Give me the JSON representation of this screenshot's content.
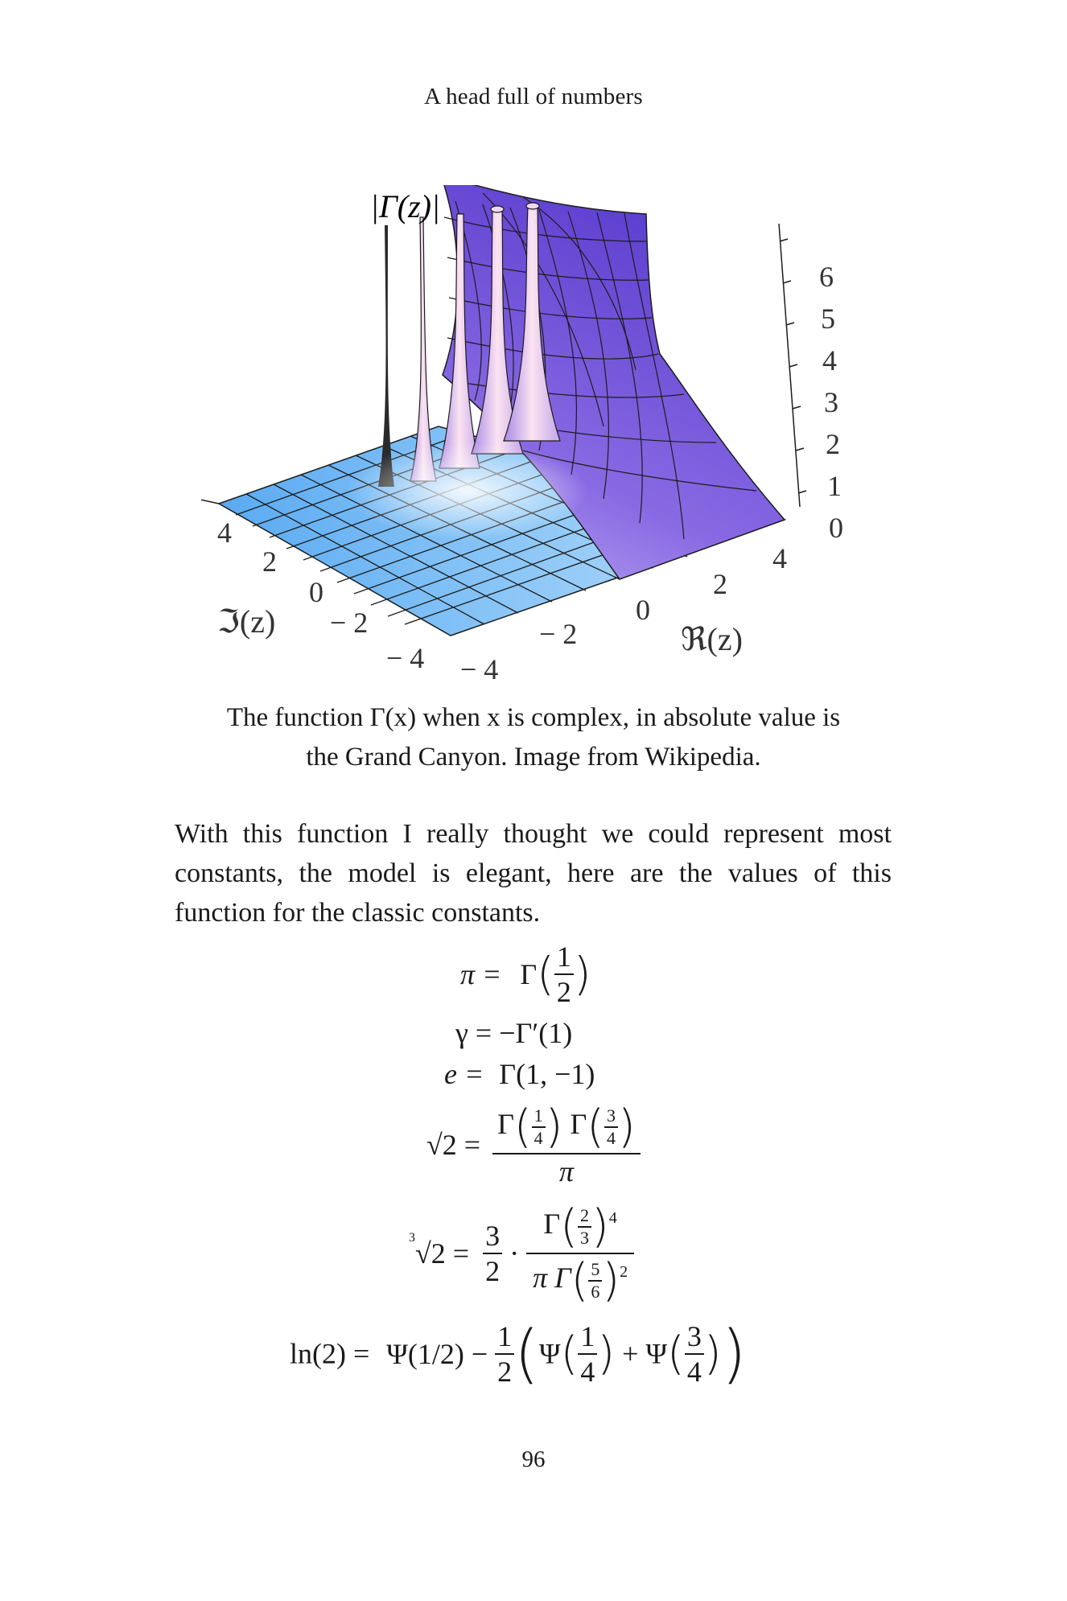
{
  "header": {
    "running_title": "A head full of numbers"
  },
  "figure": {
    "z_axis_label": "|Γ(z)|",
    "z_ticks": [
      "0",
      "1",
      "2",
      "3",
      "4",
      "5",
      "6"
    ],
    "imag_axis_label": "ℑ(z)",
    "imag_ticks": [
      "4",
      "2",
      "0",
      "− 2",
      "− 4"
    ],
    "real_axis_label": "ℜ(z)",
    "real_ticks": [
      "− 4",
      "− 2",
      "0",
      "2",
      "4"
    ],
    "colors": {
      "surface_low": "#6ab6f5",
      "surface_mid": "#f3dff0",
      "surface_high": "#6a45d8",
      "grid": "#1c1c1c"
    }
  },
  "caption": {
    "line1": "The function Γ(x) when x is complex, in absolute value is",
    "line2": "the Grand Canyon. Image from Wikipedia."
  },
  "body": {
    "paragraph": "With this function I really thought we could represent most constants, the model is elegant, here are the values of this function for the classic constants."
  },
  "equations": {
    "pi": {
      "lhs": "π =",
      "fn": "Γ",
      "num": "1",
      "den": "2"
    },
    "gamma": {
      "lhs": "γ = −Γ′(1)"
    },
    "e": {
      "lhs": "e =",
      "rhs": "Γ(1, −1)"
    },
    "sqrt2": {
      "lhs": "√2 =",
      "fn": "Γ",
      "a_num": "1",
      "a_den": "4",
      "b_num": "3",
      "b_den": "4",
      "den": "π"
    },
    "cbrt2": {
      "index": "3",
      "lhs": "√2 =",
      "coef_num": "3",
      "coef_den": "2",
      "fn": "Γ",
      "top_num": "2",
      "top_den": "3",
      "top_pow": "4",
      "bot_pre": "π Γ",
      "bot_num": "5",
      "bot_den": "6",
      "bot_pow": "2"
    },
    "ln2": {
      "lhs": "ln(2) =",
      "psi_half": "Ψ(1/2) −",
      "half_num": "1",
      "half_den": "2",
      "psi": "Ψ",
      "a_num": "1",
      "a_den": "4",
      "plus": "+",
      "b_num": "3",
      "b_den": "4"
    }
  },
  "footer": {
    "page_number": "96"
  }
}
